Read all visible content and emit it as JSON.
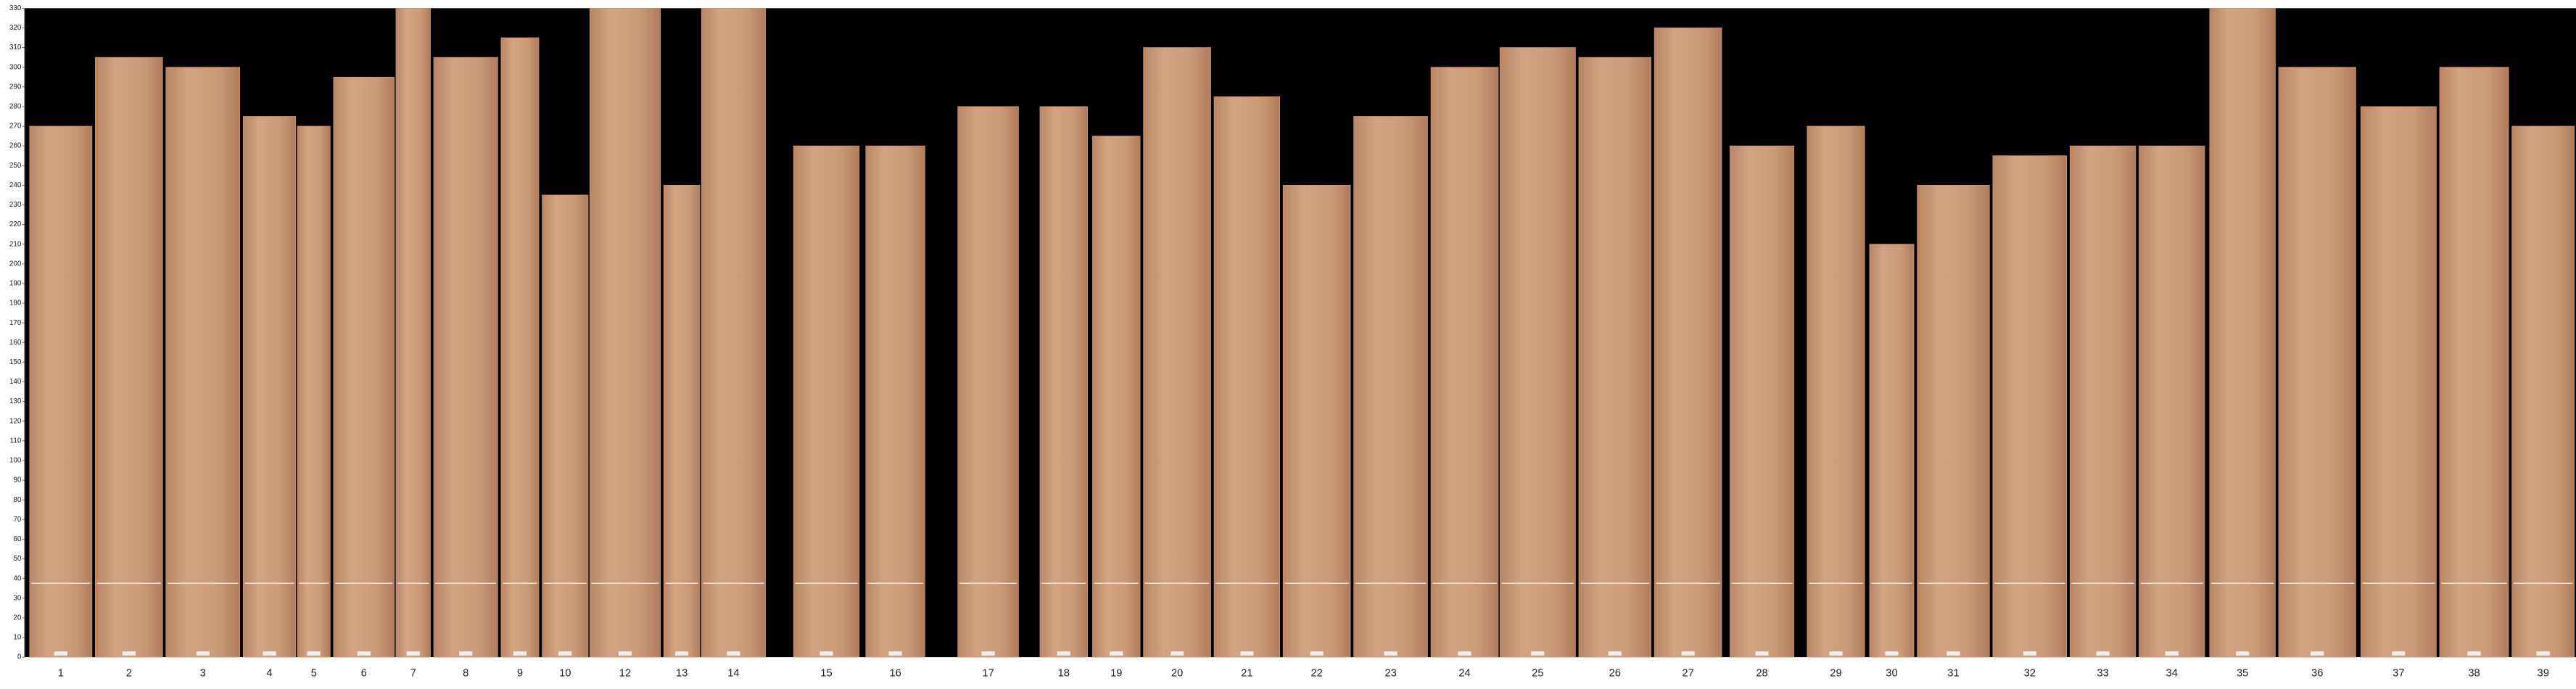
{
  "chart_data": {
    "type": "bar",
    "categories": [
      "1",
      "2",
      "3",
      "4",
      "5",
      "6",
      "7",
      "8",
      "9",
      "10",
      "12",
      "13",
      "14",
      "15",
      "16",
      "17",
      "18",
      "19",
      "20",
      "21",
      "22",
      "23",
      "24",
      "25",
      "26",
      "27",
      "28",
      "29",
      "30",
      "31",
      "32",
      "33",
      "34",
      "35",
      "36",
      "37",
      "38",
      "39"
    ],
    "values": [
      270,
      305,
      300,
      275,
      270,
      295,
      330,
      305,
      315,
      235,
      330,
      240,
      330,
      260,
      260,
      280,
      280,
      265,
      310,
      285,
      240,
      275,
      300,
      310,
      305,
      320,
      260,
      270,
      210,
      240,
      255,
      260,
      260,
      330,
      300,
      280,
      300,
      270
    ],
    "color": "#c99877",
    "ylim": [
      0,
      330
    ],
    "yticks": [
      0,
      10,
      20,
      30,
      40,
      50,
      60,
      70,
      80,
      90,
      100,
      110,
      120,
      130,
      140,
      150,
      160,
      170,
      180,
      190,
      200,
      210,
      220,
      230,
      240,
      250,
      260,
      270,
      280,
      290,
      300,
      310,
      320,
      330
    ]
  }
}
